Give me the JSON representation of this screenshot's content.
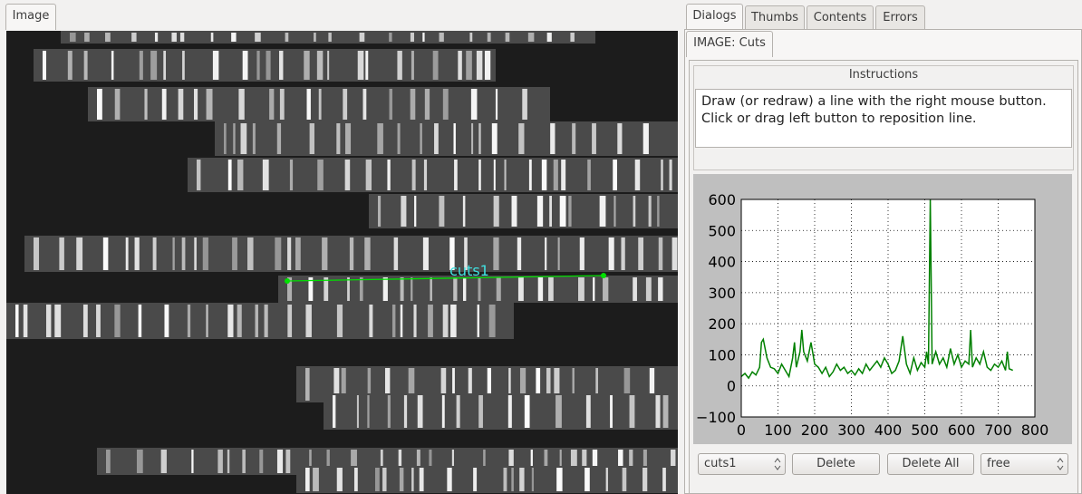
{
  "tabs_left": [
    "Image"
  ],
  "tabs_right": [
    "Dialogs",
    "Thumbs",
    "Contents",
    "Errors"
  ],
  "subtab": "IMAGE: Cuts",
  "image": {
    "cut_label": "cuts1"
  },
  "instructions": {
    "title": "Instructions",
    "text": "Draw (or redraw) a line with the right mouse button.  Click or drag left button to reposition line."
  },
  "chart_data": {
    "type": "line",
    "color": "#008000",
    "grid": true,
    "x": [
      0,
      10,
      20,
      30,
      40,
      50,
      55,
      60,
      70,
      80,
      90,
      100,
      110,
      120,
      130,
      140,
      145,
      150,
      160,
      165,
      170,
      180,
      190,
      200,
      210,
      220,
      230,
      240,
      250,
      260,
      270,
      280,
      290,
      300,
      310,
      320,
      330,
      340,
      350,
      360,
      370,
      380,
      390,
      400,
      410,
      420,
      430,
      440,
      450,
      460,
      470,
      480,
      490,
      500,
      505,
      510,
      515,
      520,
      530,
      540,
      550,
      560,
      570,
      580,
      590,
      600,
      610,
      620,
      625,
      630,
      640,
      650,
      660,
      670,
      680,
      690,
      700,
      710,
      720,
      725,
      730,
      740
    ],
    "values": [
      30,
      40,
      25,
      45,
      35,
      60,
      140,
      150,
      90,
      60,
      55,
      40,
      70,
      50,
      30,
      90,
      140,
      60,
      110,
      180,
      110,
      80,
      140,
      70,
      60,
      40,
      60,
      30,
      45,
      70,
      50,
      60,
      40,
      50,
      35,
      55,
      40,
      70,
      50,
      65,
      80,
      60,
      90,
      70,
      40,
      50,
      80,
      160,
      70,
      40,
      90,
      50,
      75,
      60,
      110,
      70,
      600,
      70,
      110,
      70,
      90,
      60,
      120,
      70,
      100,
      60,
      80,
      70,
      180,
      60,
      90,
      70,
      110,
      60,
      50,
      70,
      60,
      80,
      50,
      110,
      55,
      50
    ],
    "xlim": [
      0,
      800
    ],
    "xticks": [
      0,
      100,
      200,
      300,
      400,
      500,
      600,
      700,
      800
    ],
    "ylim": [
      -100,
      600
    ],
    "yticks": [
      {
        "value": -100,
        "label": "−100"
      },
      0,
      100,
      200,
      300,
      400,
      500,
      600
    ]
  },
  "controls": {
    "cut_select": "cuts1",
    "delete": "Delete",
    "delete_all": "Delete All",
    "mode_select": "free"
  }
}
